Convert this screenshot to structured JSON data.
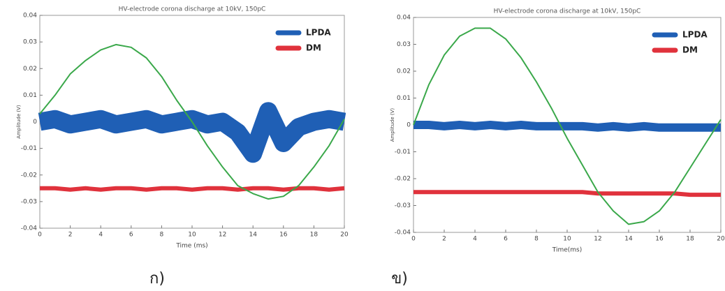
{
  "chart_data": [
    {
      "type": "line",
      "title": "HV-electrode corona discharge at 10kV, 150pC",
      "xlabel": "Time (ms)",
      "ylabel": "Amplitude (V)",
      "x": [
        0,
        1,
        2,
        3,
        4,
        5,
        6,
        7,
        8,
        9,
        10,
        11,
        12,
        13,
        14,
        15,
        16,
        17,
        18,
        19,
        20
      ],
      "xlim": [
        0,
        20
      ],
      "xticks": [
        0,
        2,
        4,
        6,
        8,
        10,
        12,
        14,
        16,
        18,
        20
      ],
      "ylim": [
        -0.04,
        0.04
      ],
      "yticks": [
        -0.04,
        -0.03,
        -0.02,
        -0.01,
        0,
        0.01,
        0.02,
        0.03,
        0.04
      ],
      "series": [
        {
          "name": "LPDA",
          "color": "#1f5fb5",
          "values": [
            0,
            0.001,
            -0.001,
            0,
            0.001,
            -0.001,
            0,
            0.001,
            -0.001,
            0,
            0.001,
            -0.001,
            0,
            -0.004,
            -0.012,
            0.004,
            -0.008,
            -0.002,
            0,
            0.001,
            0
          ]
        },
        {
          "name": "DM",
          "color": "#e0323c",
          "values": [
            -0.025,
            -0.025,
            -0.0255,
            -0.025,
            -0.0255,
            -0.025,
            -0.025,
            -0.0255,
            -0.025,
            -0.025,
            -0.0255,
            -0.025,
            -0.025,
            -0.0255,
            -0.025,
            -0.025,
            -0.0255,
            -0.025,
            -0.025,
            -0.0255,
            -0.025
          ]
        },
        {
          "color": "#3aa84a",
          "values": [
            0.003,
            0.01,
            0.018,
            0.023,
            0.027,
            0.029,
            0.028,
            0.024,
            0.017,
            0.008,
            0,
            -0.009,
            -0.017,
            -0.024,
            -0.027,
            -0.029,
            -0.028,
            -0.024,
            -0.017,
            -0.009,
            0.001
          ]
        }
      ]
    },
    {
      "type": "line",
      "title": "HV-electrode corona discharge at 10kV, 150pC",
      "xlabel": "Time(ms)",
      "ylabel": "Amplitude (V)",
      "x": [
        0,
        1,
        2,
        3,
        4,
        5,
        6,
        7,
        8,
        9,
        10,
        11,
        12,
        13,
        14,
        15,
        16,
        17,
        18,
        19,
        20
      ],
      "xlim": [
        0,
        20
      ],
      "xticks": [
        0,
        2,
        4,
        6,
        8,
        10,
        12,
        14,
        16,
        18,
        20
      ],
      "ylim": [
        -0.04,
        0.04
      ],
      "yticks": [
        -0.04,
        -0.03,
        -0.02,
        -0.01,
        0,
        0.01,
        0.02,
        0.03,
        0.04
      ],
      "series": [
        {
          "name": "LPDA",
          "color": "#1f5fb5",
          "values": [
            0,
            0,
            -0.0005,
            0,
            -0.0005,
            0,
            -0.0005,
            0,
            -0.0005,
            -0.0005,
            -0.0005,
            -0.0005,
            -0.001,
            -0.0005,
            -0.001,
            -0.0005,
            -0.001,
            -0.001,
            -0.001,
            -0.001,
            -0.001
          ]
        },
        {
          "name": "DM",
          "color": "#e0323c",
          "values": [
            -0.025,
            -0.025,
            -0.025,
            -0.025,
            -0.025,
            -0.025,
            -0.025,
            -0.025,
            -0.025,
            -0.025,
            -0.025,
            -0.025,
            -0.0255,
            -0.0255,
            -0.0255,
            -0.0255,
            -0.0255,
            -0.0255,
            -0.026,
            -0.026,
            -0.026
          ]
        },
        {
          "color": "#3aa84a",
          "values": [
            0,
            0.015,
            0.026,
            0.033,
            0.036,
            0.036,
            0.032,
            0.025,
            0.016,
            0.006,
            -0.005,
            -0.015,
            -0.025,
            -0.032,
            -0.037,
            -0.036,
            -0.032,
            -0.025,
            -0.016,
            -0.007,
            0.002
          ]
        }
      ]
    }
  ],
  "captions": [
    "ก)",
    "ข)"
  ]
}
